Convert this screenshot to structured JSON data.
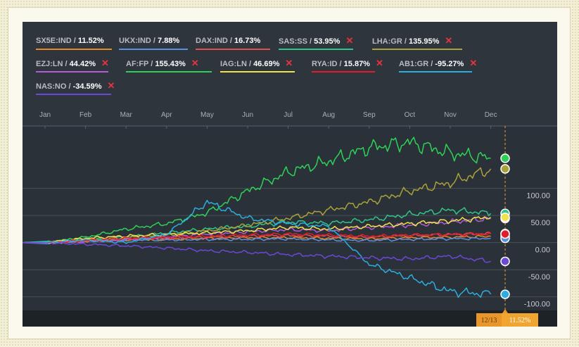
{
  "chart_data": {
    "type": "line",
    "title": "",
    "xlabel": "",
    "ylabel": "",
    "x_ticks": [
      "Jan",
      "Feb",
      "Mar",
      "Apr",
      "May",
      "Jun",
      "Jul",
      "Aug",
      "Sep",
      "Oct",
      "Nov",
      "Dec"
    ],
    "y_ticks": [
      100,
      50,
      0,
      -50,
      -100
    ],
    "y_tick_labels": [
      "100.00",
      "50.00",
      "0.00",
      "-50.00",
      "-100.00"
    ],
    "ylim": [
      -125,
      215
    ],
    "legend_position": "top",
    "grid": true,
    "cursor": {
      "date": "12/13",
      "value": "11.52%"
    },
    "series": [
      {
        "name": "SX5E:IND",
        "label": "11.52%",
        "value": 11.52,
        "color": "#e58a2a",
        "removable": false,
        "points": [
          [
            1,
            0
          ],
          [
            2,
            3
          ],
          [
            3,
            5
          ],
          [
            4,
            6
          ],
          [
            5,
            8
          ],
          [
            6,
            9
          ],
          [
            7,
            9
          ],
          [
            8,
            8
          ],
          [
            9,
            7
          ],
          [
            10,
            9
          ],
          [
            11,
            10
          ],
          [
            12,
            11.52
          ]
        ]
      },
      {
        "name": "UKX:IND",
        "label": "7.88%",
        "value": 7.88,
        "color": "#5b8fe0",
        "removable": false,
        "points": [
          [
            1,
            0
          ],
          [
            2,
            3
          ],
          [
            3,
            5
          ],
          [
            4,
            5
          ],
          [
            5,
            6
          ],
          [
            6,
            6
          ],
          [
            7,
            7
          ],
          [
            8,
            5
          ],
          [
            9,
            4
          ],
          [
            10,
            6
          ],
          [
            11,
            7
          ],
          [
            12,
            7.88
          ]
        ]
      },
      {
        "name": "DAX:IND",
        "label": "16.73%",
        "value": 16.73,
        "color": "#e05050",
        "removable": false,
        "points": [
          [
            1,
            0
          ],
          [
            2,
            4
          ],
          [
            3,
            7
          ],
          [
            4,
            8
          ],
          [
            5,
            10
          ],
          [
            6,
            12
          ],
          [
            7,
            13
          ],
          [
            8,
            12
          ],
          [
            9,
            10
          ],
          [
            10,
            13
          ],
          [
            11,
            15
          ],
          [
            12,
            16.73
          ]
        ]
      },
      {
        "name": "SAS:SS",
        "label": "53.95%",
        "value": 53.95,
        "color": "#2fc48a",
        "removable": true,
        "points": [
          [
            1,
            0
          ],
          [
            2,
            5
          ],
          [
            3,
            10
          ],
          [
            4,
            18
          ],
          [
            5,
            25
          ],
          [
            6,
            30
          ],
          [
            7,
            38
          ],
          [
            8,
            36
          ],
          [
            9,
            42
          ],
          [
            10,
            52
          ],
          [
            11,
            60
          ],
          [
            12,
            53.95
          ]
        ]
      },
      {
        "name": "LHA:GR",
        "label": "135.95%",
        "value": 135.95,
        "color": "#a9a23a",
        "removable": true,
        "points": [
          [
            1,
            0
          ],
          [
            2,
            4
          ],
          [
            3,
            9
          ],
          [
            4,
            14
          ],
          [
            5,
            22
          ],
          [
            6,
            32
          ],
          [
            7,
            45
          ],
          [
            8,
            60
          ],
          [
            9,
            75
          ],
          [
            10,
            95
          ],
          [
            11,
            110
          ],
          [
            12,
            135.95
          ]
        ]
      },
      {
        "name": "EZJ:LN",
        "label": "44.42%",
        "value": 44.42,
        "color": "#b45cd6",
        "removable": true,
        "points": [
          [
            1,
            0
          ],
          [
            2,
            2
          ],
          [
            3,
            6
          ],
          [
            4,
            10
          ],
          [
            5,
            16
          ],
          [
            6,
            20
          ],
          [
            7,
            24
          ],
          [
            8,
            22
          ],
          [
            9,
            28
          ],
          [
            10,
            32
          ],
          [
            11,
            38
          ],
          [
            12,
            44.42
          ]
        ]
      },
      {
        "name": "AF:FP",
        "label": "155.43%",
        "value": 155.43,
        "color": "#2ed158",
        "removable": true,
        "points": [
          [
            1,
            0
          ],
          [
            2,
            10
          ],
          [
            3,
            25
          ],
          [
            4,
            35
          ],
          [
            5,
            55
          ],
          [
            6,
            95
          ],
          [
            7,
            130
          ],
          [
            8,
            150
          ],
          [
            9,
            175
          ],
          [
            10,
            185
          ],
          [
            11,
            165
          ],
          [
            12,
            155.43
          ]
        ]
      },
      {
        "name": "IAG:LN",
        "label": "46.69%",
        "value": 46.69,
        "color": "#f2e14a",
        "removable": true,
        "points": [
          [
            1,
            0
          ],
          [
            2,
            8
          ],
          [
            3,
            12
          ],
          [
            4,
            15
          ],
          [
            5,
            18
          ],
          [
            6,
            22
          ],
          [
            7,
            28
          ],
          [
            8,
            25
          ],
          [
            9,
            30
          ],
          [
            10,
            35
          ],
          [
            11,
            40
          ],
          [
            12,
            46.69
          ]
        ]
      },
      {
        "name": "RYA:ID",
        "label": "15.87%",
        "value": 15.87,
        "color": "#e01e2a",
        "removable": true,
        "points": [
          [
            1,
            0
          ],
          [
            2,
            4
          ],
          [
            3,
            8
          ],
          [
            4,
            10
          ],
          [
            5,
            12
          ],
          [
            6,
            14
          ],
          [
            7,
            16
          ],
          [
            8,
            14
          ],
          [
            9,
            12
          ],
          [
            10,
            14
          ],
          [
            11,
            15
          ],
          [
            12,
            15.87
          ]
        ]
      },
      {
        "name": "AB1:GR",
        "label": "-95.27%",
        "value": -95.27,
        "color": "#2aaee0",
        "removable": true,
        "points": [
          [
            1,
            0
          ],
          [
            2,
            5
          ],
          [
            3,
            0
          ],
          [
            4,
            15
          ],
          [
            5,
            75
          ],
          [
            6,
            45
          ],
          [
            7,
            35
          ],
          [
            8,
            30
          ],
          [
            9,
            -40
          ],
          [
            10,
            -65
          ],
          [
            11,
            -90
          ],
          [
            12,
            -95.27
          ]
        ]
      },
      {
        "name": "NAS:NO",
        "label": "-34.59%",
        "value": -34.59,
        "color": "#6a48d8",
        "removable": true,
        "points": [
          [
            1,
            0
          ],
          [
            2,
            -3
          ],
          [
            3,
            -6
          ],
          [
            4,
            -10
          ],
          [
            5,
            -15
          ],
          [
            6,
            -18
          ],
          [
            7,
            -22
          ],
          [
            8,
            -25
          ],
          [
            9,
            -28
          ],
          [
            10,
            -30
          ],
          [
            11,
            -25
          ],
          [
            12,
            -34.59
          ]
        ]
      }
    ]
  }
}
